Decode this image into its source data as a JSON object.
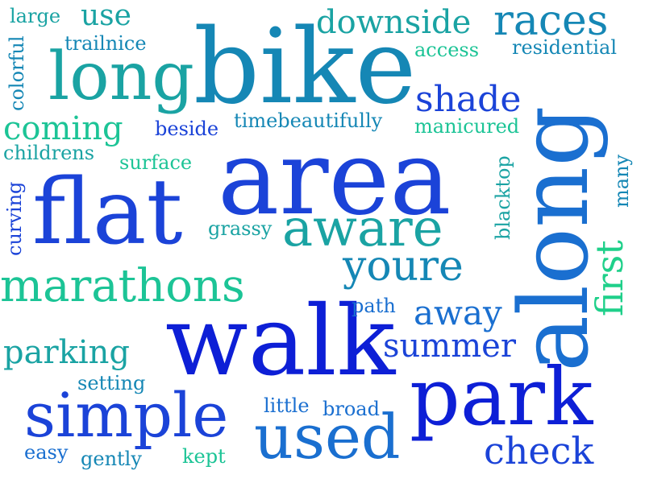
{
  "word_cloud": {
    "words": [
      {
        "id": "bike",
        "text": "bike",
        "color": "#1587b5"
      },
      {
        "id": "area",
        "text": "area",
        "color": "#1b43d8"
      },
      {
        "id": "along",
        "text": "along",
        "color": "#1a6fd0"
      },
      {
        "id": "walk",
        "text": "walk",
        "color": "#0d1fd6"
      },
      {
        "id": "park",
        "text": "park",
        "color": "#0d1fd6"
      },
      {
        "id": "flat",
        "text": "flat",
        "color": "#1b43d8"
      },
      {
        "id": "long",
        "text": "long",
        "color": "#1aa3a3"
      },
      {
        "id": "simple",
        "text": "simple",
        "color": "#1b43d8"
      },
      {
        "id": "used",
        "text": "used",
        "color": "#1a6fd0"
      },
      {
        "id": "races",
        "text": "races",
        "color": "#1587b5"
      },
      {
        "id": "marathons",
        "text": "marathons",
        "color": "#1cc496"
      },
      {
        "id": "aware",
        "text": "aware",
        "color": "#1aa3a3"
      },
      {
        "id": "youre",
        "text": "youre",
        "color": "#1587b5"
      },
      {
        "id": "downside",
        "text": "downside",
        "color": "#1aa3a3"
      },
      {
        "id": "coming",
        "text": "coming",
        "color": "#1cc496"
      },
      {
        "id": "first",
        "text": "first",
        "color": "#1fd08a"
      },
      {
        "id": "check",
        "text": "check",
        "color": "#1b43d8"
      },
      {
        "id": "shade",
        "text": "shade",
        "color": "#1b43d8"
      },
      {
        "id": "away",
        "text": "away",
        "color": "#1a6fd0"
      },
      {
        "id": "summer",
        "text": "summer",
        "color": "#1b43d8"
      },
      {
        "id": "parking",
        "text": "parking",
        "color": "#1aa3a3"
      },
      {
        "id": "use",
        "text": "use",
        "color": "#1aa3a3"
      },
      {
        "id": "residential",
        "text": "residential",
        "color": "#1587b5"
      },
      {
        "id": "manicured",
        "text": "manicured",
        "color": "#1cc496"
      },
      {
        "id": "timebeautifully",
        "text": "timebeautifully",
        "color": "#1587b5"
      },
      {
        "id": "trailnice",
        "text": "trailnice",
        "color": "#1587b5"
      },
      {
        "id": "access",
        "text": "access",
        "color": "#1cc496"
      },
      {
        "id": "large",
        "text": "large",
        "color": "#1aa3a3"
      },
      {
        "id": "colorful",
        "text": "colorful",
        "color": "#1587b5"
      },
      {
        "id": "beside",
        "text": "beside",
        "color": "#1b43d8"
      },
      {
        "id": "childrens",
        "text": "childrens",
        "color": "#1aa3a3"
      },
      {
        "id": "surface",
        "text": "surface",
        "color": "#1cc496"
      },
      {
        "id": "curving",
        "text": "curving",
        "color": "#1b43d8"
      },
      {
        "id": "grassy",
        "text": "grassy",
        "color": "#1aa3a3"
      },
      {
        "id": "blacktop",
        "text": "blacktop",
        "color": "#1aa3a3"
      },
      {
        "id": "many",
        "text": "many",
        "color": "#1587b5"
      },
      {
        "id": "path",
        "text": "path",
        "color": "#1a6fd0"
      },
      {
        "id": "setting",
        "text": "setting",
        "color": "#1587b5"
      },
      {
        "id": "little",
        "text": "little",
        "color": "#1a6fd0"
      },
      {
        "id": "broad",
        "text": "broad",
        "color": "#1a6fd0"
      },
      {
        "id": "easy",
        "text": "easy",
        "color": "#1a6fd0"
      },
      {
        "id": "gently",
        "text": "gently",
        "color": "#1587b5"
      },
      {
        "id": "kept",
        "text": "kept",
        "color": "#1cc496"
      }
    ]
  }
}
